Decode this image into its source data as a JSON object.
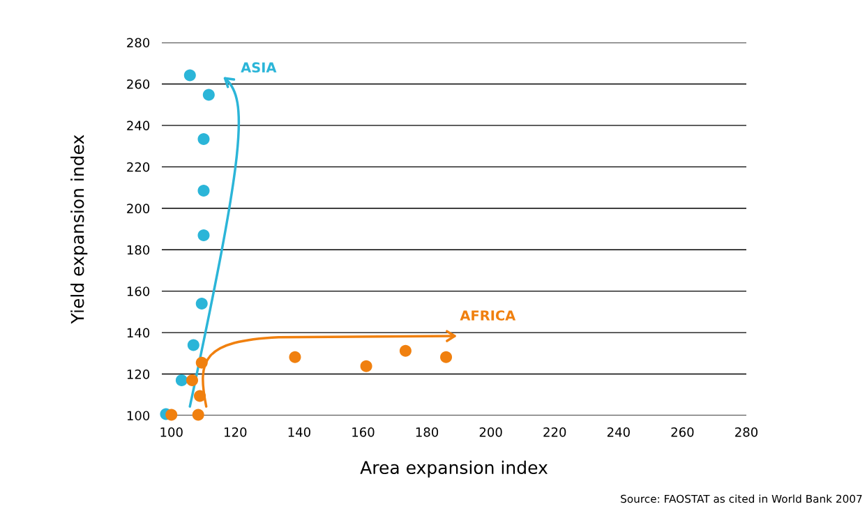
{
  "chart_data": {
    "type": "scatter",
    "xlabel": "Area expansion index",
    "ylabel": "Yield expansion index",
    "xlim": [
      97,
      280
    ],
    "xticks": [
      100,
      120,
      140,
      160,
      180,
      200,
      220,
      240,
      260,
      280
    ],
    "ylim": [
      100,
      280
    ],
    "yticks": [
      100,
      120,
      140,
      160,
      180,
      200,
      220,
      240,
      260,
      280
    ],
    "grid": "y",
    "marker": "circle",
    "legend": false,
    "series": [
      {
        "name": "ASIA",
        "color": "#2bb5d8",
        "x": [
          98.3,
          103.2,
          106.9,
          109.5,
          110.1,
          110.1,
          110.1,
          111.7,
          105.8
        ],
        "values": [
          100.7,
          117,
          134,
          154,
          187,
          208.5,
          233.4,
          254.8,
          264.2
        ]
      },
      {
        "name": "AFRICA",
        "color": "#f0800f",
        "x": [
          100,
          108.4,
          108.9,
          106.5,
          109.5,
          138.7,
          161,
          173.3,
          186
        ],
        "values": [
          100.3,
          100.3,
          109.4,
          117,
          125.5,
          128.2,
          123.8,
          131.2,
          128.2
        ]
      }
    ],
    "annotations": [
      "Source: FAOSTAT as cited in World Bank 2007"
    ]
  }
}
